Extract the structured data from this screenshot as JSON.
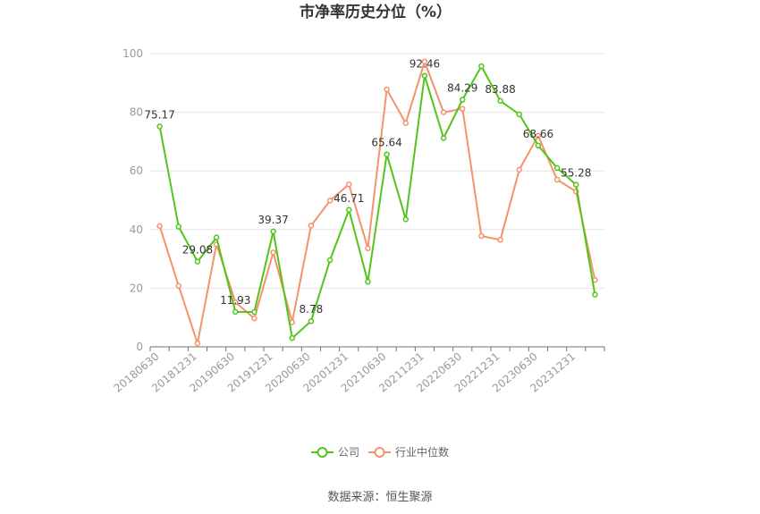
{
  "chart_data": {
    "type": "line",
    "title": "市净率历史分位（%）",
    "xlabel": "",
    "ylabel": "",
    "ylim": [
      0,
      100
    ],
    "yticks": [
      0,
      20,
      40,
      60,
      80,
      100
    ],
    "grid": true,
    "legend_position": "bottom",
    "x": [
      "20180630",
      "20180930",
      "20181231",
      "20190331",
      "20190630",
      "20190930",
      "20191231",
      "20200331",
      "20200630",
      "20200930",
      "20201231",
      "20210331",
      "20210630",
      "20210930",
      "20211231",
      "20220331",
      "20220630",
      "20220930",
      "20221231",
      "20230331",
      "20230630",
      "20230930",
      "20231231",
      "20240331"
    ],
    "x_tick_labels": [
      "20180630",
      "20181231",
      "20190630",
      "20191231",
      "20200630",
      "20201231",
      "20210630",
      "20211231",
      "20220630",
      "20221231",
      "20230630",
      "20231231"
    ],
    "series": [
      {
        "name": "公司",
        "color": "#52c41a",
        "values": [
          75.17,
          41,
          29.08,
          37.3,
          11.93,
          11.9,
          39.37,
          3,
          8.78,
          29.6,
          46.71,
          22.2,
          65.64,
          43.5,
          92.46,
          71.2,
          84.29,
          95.7,
          83.88,
          79.3,
          68.66,
          61,
          55.28,
          17.8
        ],
        "labels": [
          {
            "index": 0,
            "text": "75.17"
          },
          {
            "index": 2,
            "text": "29.08"
          },
          {
            "index": 4,
            "text": "11.93"
          },
          {
            "index": 6,
            "text": "39.37"
          },
          {
            "index": 8,
            "text": "8.78"
          },
          {
            "index": 10,
            "text": "46.71"
          },
          {
            "index": 12,
            "text": "65.64"
          },
          {
            "index": 14,
            "text": "92.46"
          },
          {
            "index": 16,
            "text": "84.29"
          },
          {
            "index": 18,
            "text": "83.88"
          },
          {
            "index": 20,
            "text": "68.66"
          },
          {
            "index": 22,
            "text": "55.28"
          }
        ]
      },
      {
        "name": "行业中位数",
        "color": "#f4926b",
        "values": [
          41.2,
          20.8,
          1.2,
          35,
          15.2,
          9.7,
          32.2,
          8.4,
          41.3,
          49.9,
          55.4,
          33.6,
          87.8,
          76.3,
          97.3,
          80,
          81.2,
          37.8,
          36.5,
          60.4,
          72,
          57,
          53,
          22.8
        ]
      }
    ]
  },
  "footer": {
    "source": "数据来源：恒生聚源"
  }
}
